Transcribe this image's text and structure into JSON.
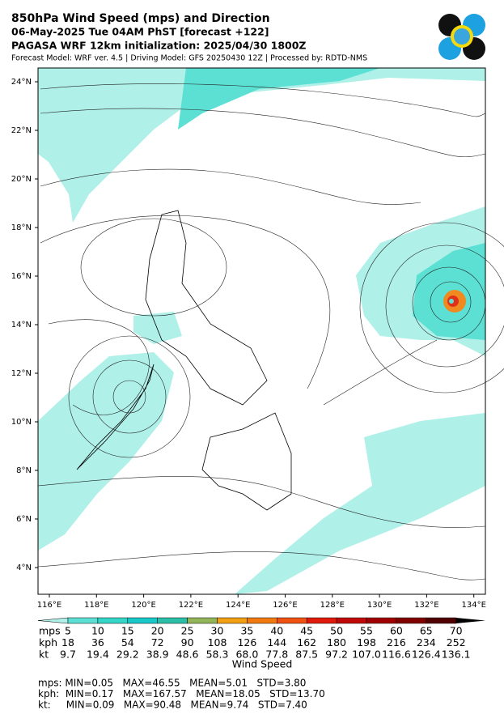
{
  "header": {
    "title": "850hPa Wind Speed (mps) and Direction",
    "line2": "06-May-2025 Tue 04AM PhST [forecast +122]",
    "line3": "PAGASA WRF 12km initialization: 2025/04/30 1800Z",
    "line4": "Forecast Model: WRF ver. 4.5 | Driving Model: GFS 20250430 12Z | Processed by: RDTD-NMS"
  },
  "map": {
    "lat_labels": [
      "24°N",
      "22°N",
      "20°N",
      "18°N",
      "16°N",
      "14°N",
      "12°N",
      "10°N",
      "8°N",
      "6°N",
      "4°N"
    ],
    "lon_labels": [
      "116°E",
      "118°E",
      "120°E",
      "122°E",
      "124°E",
      "126°E",
      "128°E",
      "130°E",
      "132°E",
      "134°E"
    ]
  },
  "colorbar": {
    "title": "Wind Speed",
    "rows": [
      {
        "unit": "mps",
        "labels": [
          "5",
          "10",
          "15",
          "20",
          "25",
          "30",
          "35",
          "40",
          "45",
          "50",
          "55",
          "60",
          "65",
          "70"
        ]
      },
      {
        "unit": "kph",
        "labels": [
          "18",
          "36",
          "54",
          "72",
          "90",
          "108",
          "126",
          "144",
          "162",
          "180",
          "198",
          "216",
          "234",
          "252"
        ]
      },
      {
        "unit": "kt",
        "labels": [
          "9.7",
          "19.4",
          "29.2",
          "38.9",
          "48.6",
          "58.3",
          "68.0",
          "77.8",
          "87.5",
          "97.2",
          "107.0",
          "116.6",
          "126.4",
          "136.1"
        ]
      }
    ]
  },
  "stats": [
    "mps: MIN=0.05   MAX=46.55   MEAN=5.01   STD=3.80",
    "kph:  MIN=0.17   MAX=167.57   MEAN=18.05   STD=13.70",
    "kt:     MIN=0.09   MAX=90.48   MEAN=9.74   STD=7.40"
  ]
}
